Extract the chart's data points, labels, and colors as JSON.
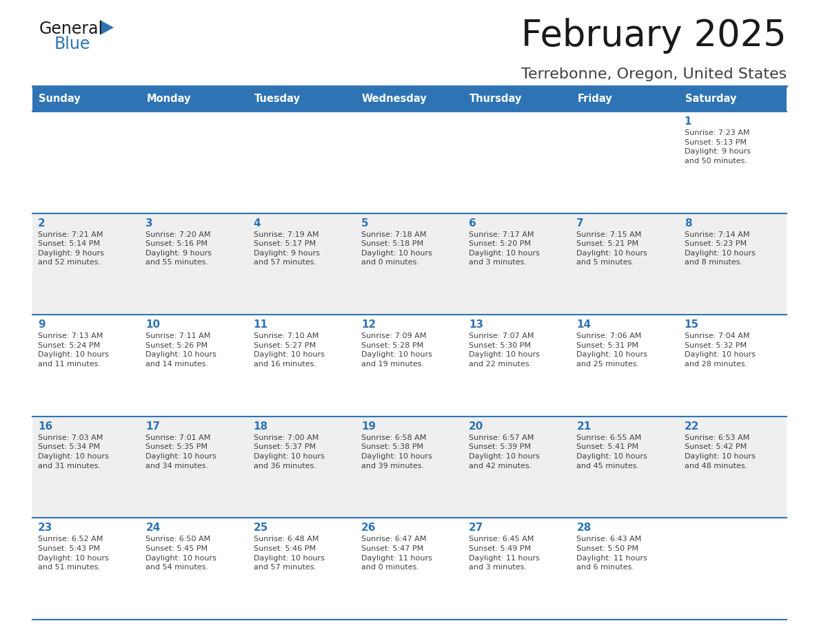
{
  "title": "February 2025",
  "subtitle": "Terrebonne, Oregon, United States",
  "header_bg_color": "#2E74B5",
  "header_text_color": "#FFFFFF",
  "cell_bg_color": "#FFFFFF",
  "alt_cell_bg_color": "#EFEFEF",
  "border_color": "#2E74B5",
  "title_color": "#1a1a1a",
  "subtitle_color": "#404040",
  "day_number_color": "#2E74B5",
  "cell_text_color": "#404040",
  "days_of_week": [
    "Sunday",
    "Monday",
    "Tuesday",
    "Wednesday",
    "Thursday",
    "Friday",
    "Saturday"
  ],
  "weeks": [
    [
      {
        "day": null,
        "info": null
      },
      {
        "day": null,
        "info": null
      },
      {
        "day": null,
        "info": null
      },
      {
        "day": null,
        "info": null
      },
      {
        "day": null,
        "info": null
      },
      {
        "day": null,
        "info": null
      },
      {
        "day": 1,
        "info": "Sunrise: 7:23 AM\nSunset: 5:13 PM\nDaylight: 9 hours\nand 50 minutes."
      }
    ],
    [
      {
        "day": 2,
        "info": "Sunrise: 7:21 AM\nSunset: 5:14 PM\nDaylight: 9 hours\nand 52 minutes."
      },
      {
        "day": 3,
        "info": "Sunrise: 7:20 AM\nSunset: 5:16 PM\nDaylight: 9 hours\nand 55 minutes."
      },
      {
        "day": 4,
        "info": "Sunrise: 7:19 AM\nSunset: 5:17 PM\nDaylight: 9 hours\nand 57 minutes."
      },
      {
        "day": 5,
        "info": "Sunrise: 7:18 AM\nSunset: 5:18 PM\nDaylight: 10 hours\nand 0 minutes."
      },
      {
        "day": 6,
        "info": "Sunrise: 7:17 AM\nSunset: 5:20 PM\nDaylight: 10 hours\nand 3 minutes."
      },
      {
        "day": 7,
        "info": "Sunrise: 7:15 AM\nSunset: 5:21 PM\nDaylight: 10 hours\nand 5 minutes."
      },
      {
        "day": 8,
        "info": "Sunrise: 7:14 AM\nSunset: 5:23 PM\nDaylight: 10 hours\nand 8 minutes."
      }
    ],
    [
      {
        "day": 9,
        "info": "Sunrise: 7:13 AM\nSunset: 5:24 PM\nDaylight: 10 hours\nand 11 minutes."
      },
      {
        "day": 10,
        "info": "Sunrise: 7:11 AM\nSunset: 5:26 PM\nDaylight: 10 hours\nand 14 minutes."
      },
      {
        "day": 11,
        "info": "Sunrise: 7:10 AM\nSunset: 5:27 PM\nDaylight: 10 hours\nand 16 minutes."
      },
      {
        "day": 12,
        "info": "Sunrise: 7:09 AM\nSunset: 5:28 PM\nDaylight: 10 hours\nand 19 minutes."
      },
      {
        "day": 13,
        "info": "Sunrise: 7:07 AM\nSunset: 5:30 PM\nDaylight: 10 hours\nand 22 minutes."
      },
      {
        "day": 14,
        "info": "Sunrise: 7:06 AM\nSunset: 5:31 PM\nDaylight: 10 hours\nand 25 minutes."
      },
      {
        "day": 15,
        "info": "Sunrise: 7:04 AM\nSunset: 5:32 PM\nDaylight: 10 hours\nand 28 minutes."
      }
    ],
    [
      {
        "day": 16,
        "info": "Sunrise: 7:03 AM\nSunset: 5:34 PM\nDaylight: 10 hours\nand 31 minutes."
      },
      {
        "day": 17,
        "info": "Sunrise: 7:01 AM\nSunset: 5:35 PM\nDaylight: 10 hours\nand 34 minutes."
      },
      {
        "day": 18,
        "info": "Sunrise: 7:00 AM\nSunset: 5:37 PM\nDaylight: 10 hours\nand 36 minutes."
      },
      {
        "day": 19,
        "info": "Sunrise: 6:58 AM\nSunset: 5:38 PM\nDaylight: 10 hours\nand 39 minutes."
      },
      {
        "day": 20,
        "info": "Sunrise: 6:57 AM\nSunset: 5:39 PM\nDaylight: 10 hours\nand 42 minutes."
      },
      {
        "day": 21,
        "info": "Sunrise: 6:55 AM\nSunset: 5:41 PM\nDaylight: 10 hours\nand 45 minutes."
      },
      {
        "day": 22,
        "info": "Sunrise: 6:53 AM\nSunset: 5:42 PM\nDaylight: 10 hours\nand 48 minutes."
      }
    ],
    [
      {
        "day": 23,
        "info": "Sunrise: 6:52 AM\nSunset: 5:43 PM\nDaylight: 10 hours\nand 51 minutes."
      },
      {
        "day": 24,
        "info": "Sunrise: 6:50 AM\nSunset: 5:45 PM\nDaylight: 10 hours\nand 54 minutes."
      },
      {
        "day": 25,
        "info": "Sunrise: 6:48 AM\nSunset: 5:46 PM\nDaylight: 10 hours\nand 57 minutes."
      },
      {
        "day": 26,
        "info": "Sunrise: 6:47 AM\nSunset: 5:47 PM\nDaylight: 11 hours\nand 0 minutes."
      },
      {
        "day": 27,
        "info": "Sunrise: 6:45 AM\nSunset: 5:49 PM\nDaylight: 11 hours\nand 3 minutes."
      },
      {
        "day": 28,
        "info": "Sunrise: 6:43 AM\nSunset: 5:50 PM\nDaylight: 11 hours\nand 6 minutes."
      },
      {
        "day": null,
        "info": null
      }
    ]
  ],
  "logo_text_general": "General",
  "logo_text_blue": "Blue",
  "logo_color_general": "#1a1a1a",
  "logo_color_blue": "#2E74B5",
  "logo_triangle_color": "#2E74B5",
  "fig_width": 11.88,
  "fig_height": 9.18,
  "dpi": 100
}
